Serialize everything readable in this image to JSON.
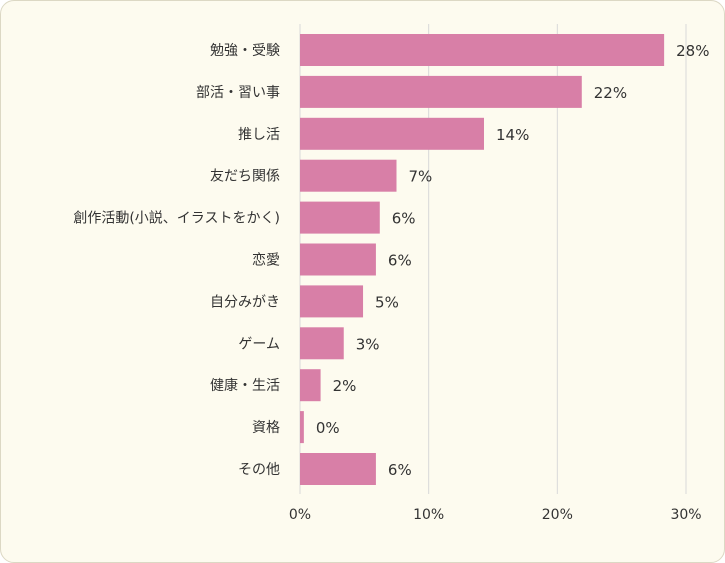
{
  "chart_data": {
    "type": "bar",
    "orientation": "horizontal",
    "categories": [
      "勉強・受験",
      "部活・習い事",
      "推し活",
      "友だち関係",
      "創作活動(小説、イラストをかく)",
      "恋愛",
      "自分みがき",
      "ゲーム",
      "健康・生活",
      "資格",
      "その他"
    ],
    "values": [
      28.3,
      21.9,
      14.3,
      7.5,
      6.2,
      5.9,
      4.9,
      3.4,
      1.6,
      0.3,
      5.9
    ],
    "value_labels": [
      "28%",
      "22%",
      "14%",
      "7%",
      "6%",
      "6%",
      "5%",
      "3%",
      "2%",
      "0%",
      "6%"
    ],
    "x_ticks": [
      "0%",
      "10%",
      "20%",
      "30%"
    ],
    "xlim": [
      0,
      30
    ],
    "grid": true,
    "bar_color": "#d87fa7",
    "gridline_color": "#d9d9d9",
    "background_color": "#fdfbef"
  }
}
